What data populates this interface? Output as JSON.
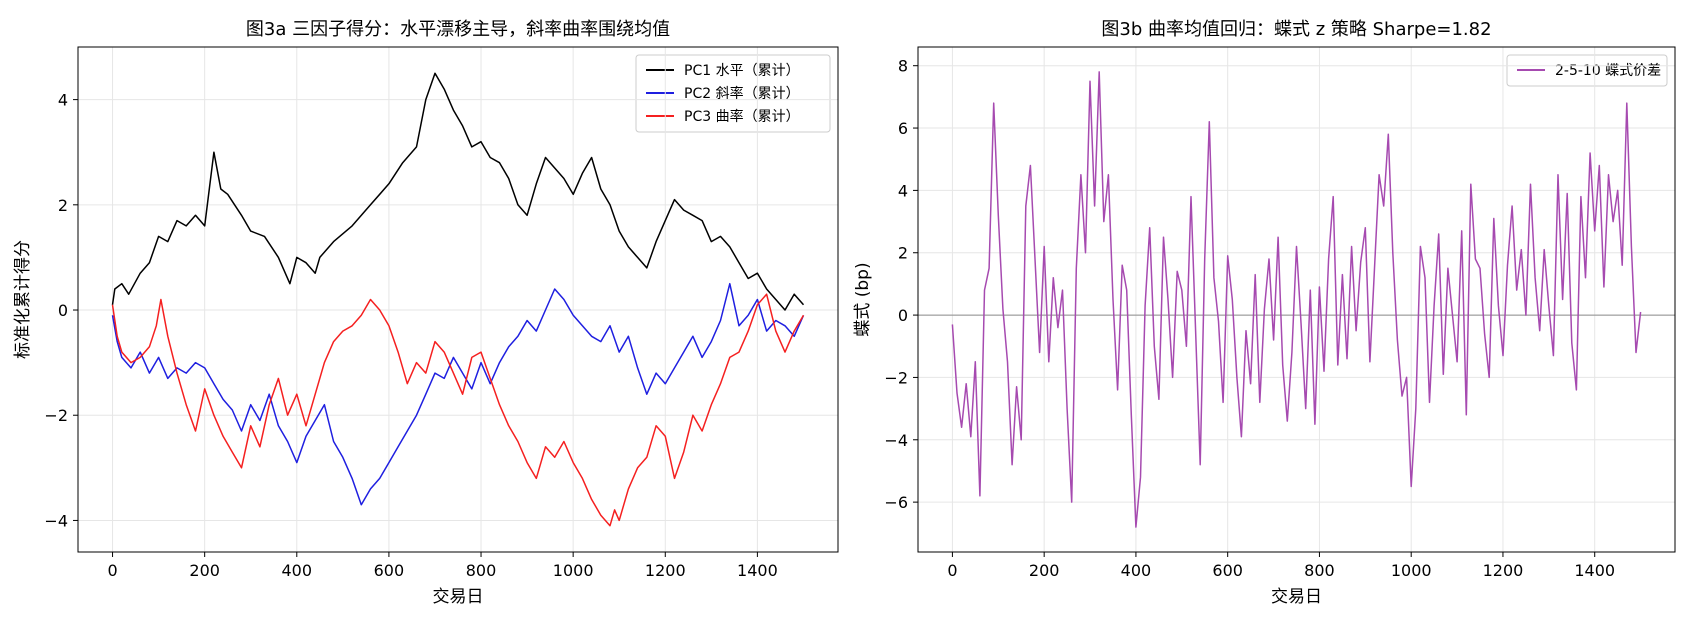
{
  "figure": {
    "background": "#ffffff"
  },
  "chart_data": [
    {
      "type": "line",
      "title": "图3a  三因子得分：水平漂移主导，斜率曲率围绕均值",
      "xlabel": "交易日",
      "ylabel": "标准化累计得分",
      "xlim": [
        -75,
        1575
      ],
      "ylim": [
        -4.6,
        5.0
      ],
      "xticks": [
        0,
        200,
        400,
        600,
        800,
        1000,
        1200,
        1400
      ],
      "yticks": [
        -4,
        -2,
        0,
        2,
        4
      ],
      "grid": true,
      "legend_position": "top-right",
      "series": [
        {
          "name": "PC1 水平（累计）",
          "color": "#000000",
          "x": [
            0,
            5,
            20,
            35,
            60,
            80,
            100,
            120,
            140,
            160,
            180,
            200,
            210,
            220,
            235,
            250,
            280,
            300,
            330,
            360,
            385,
            400,
            420,
            440,
            450,
            480,
            520,
            560,
            600,
            630,
            660,
            680,
            700,
            720,
            740,
            760,
            780,
            800,
            820,
            840,
            860,
            880,
            900,
            920,
            940,
            960,
            980,
            1000,
            1020,
            1040,
            1060,
            1080,
            1100,
            1120,
            1140,
            1160,
            1180,
            1200,
            1220,
            1240,
            1260,
            1280,
            1300,
            1320,
            1340,
            1360,
            1380,
            1400,
            1420,
            1440,
            1460,
            1480,
            1500
          ],
          "y": [
            0.1,
            0.4,
            0.5,
            0.3,
            0.7,
            0.9,
            1.4,
            1.3,
            1.7,
            1.6,
            1.8,
            1.6,
            2.3,
            3.0,
            2.3,
            2.2,
            1.8,
            1.5,
            1.4,
            1.0,
            0.5,
            1.0,
            0.9,
            0.7,
            1.0,
            1.3,
            1.6,
            2.0,
            2.4,
            2.8,
            3.1,
            4.0,
            4.5,
            4.2,
            3.8,
            3.5,
            3.1,
            3.2,
            2.9,
            2.8,
            2.5,
            2.0,
            1.8,
            2.4,
            2.9,
            2.7,
            2.5,
            2.2,
            2.6,
            2.9,
            2.3,
            2.0,
            1.5,
            1.2,
            1.0,
            0.8,
            1.3,
            1.7,
            2.1,
            1.9,
            1.8,
            1.7,
            1.3,
            1.4,
            1.2,
            0.9,
            0.6,
            0.7,
            0.4,
            0.2,
            0.0,
            0.3,
            0.1
          ]
        },
        {
          "name": "PC2 斜率（累计）",
          "color": "#1f1fe0",
          "x": [
            0,
            10,
            20,
            40,
            60,
            80,
            100,
            120,
            140,
            160,
            180,
            200,
            220,
            240,
            260,
            280,
            300,
            320,
            340,
            360,
            380,
            400,
            420,
            440,
            460,
            480,
            500,
            520,
            540,
            560,
            580,
            600,
            620,
            640,
            660,
            680,
            700,
            720,
            740,
            760,
            780,
            800,
            820,
            840,
            860,
            880,
            900,
            920,
            940,
            960,
            980,
            1000,
            1020,
            1040,
            1060,
            1080,
            1100,
            1120,
            1140,
            1160,
            1180,
            1200,
            1220,
            1240,
            1260,
            1280,
            1300,
            1320,
            1340,
            1360,
            1380,
            1400,
            1420,
            1440,
            1460,
            1480,
            1500
          ],
          "y": [
            -0.1,
            -0.6,
            -0.9,
            -1.1,
            -0.8,
            -1.2,
            -0.9,
            -1.3,
            -1.1,
            -1.2,
            -1.0,
            -1.1,
            -1.4,
            -1.7,
            -1.9,
            -2.3,
            -1.8,
            -2.1,
            -1.6,
            -2.2,
            -2.5,
            -2.9,
            -2.4,
            -2.1,
            -1.8,
            -2.5,
            -2.8,
            -3.2,
            -3.7,
            -3.4,
            -3.2,
            -2.9,
            -2.6,
            -2.3,
            -2.0,
            -1.6,
            -1.2,
            -1.3,
            -0.9,
            -1.2,
            -1.5,
            -1.0,
            -1.4,
            -1.0,
            -0.7,
            -0.5,
            -0.2,
            -0.4,
            0.0,
            0.4,
            0.2,
            -0.1,
            -0.3,
            -0.5,
            -0.6,
            -0.3,
            -0.8,
            -0.5,
            -1.1,
            -1.6,
            -1.2,
            -1.4,
            -1.1,
            -0.8,
            -0.5,
            -0.9,
            -0.6,
            -0.2,
            0.5,
            -0.3,
            -0.1,
            0.2,
            -0.4,
            -0.2,
            -0.3,
            -0.5,
            -0.1
          ]
        },
        {
          "name": "PC3 曲率（累计）",
          "color": "#f52020",
          "x": [
            0,
            10,
            20,
            40,
            60,
            80,
            95,
            105,
            120,
            140,
            160,
            180,
            200,
            220,
            240,
            260,
            280,
            300,
            320,
            340,
            360,
            380,
            400,
            420,
            440,
            460,
            480,
            500,
            520,
            540,
            560,
            580,
            600,
            620,
            640,
            660,
            680,
            700,
            720,
            740,
            760,
            780,
            800,
            820,
            840,
            860,
            880,
            900,
            920,
            940,
            960,
            980,
            1000,
            1020,
            1040,
            1060,
            1080,
            1090,
            1100,
            1120,
            1140,
            1160,
            1180,
            1200,
            1220,
            1240,
            1260,
            1280,
            1300,
            1320,
            1340,
            1360,
            1380,
            1400,
            1420,
            1440,
            1460,
            1480,
            1500
          ],
          "y": [
            0.1,
            -0.5,
            -0.8,
            -1.0,
            -0.9,
            -0.7,
            -0.3,
            0.2,
            -0.5,
            -1.2,
            -1.8,
            -2.3,
            -1.5,
            -2.0,
            -2.4,
            -2.7,
            -3.0,
            -2.2,
            -2.6,
            -1.8,
            -1.3,
            -2.0,
            -1.6,
            -2.2,
            -1.6,
            -1.0,
            -0.6,
            -0.4,
            -0.3,
            -0.1,
            0.2,
            0.0,
            -0.3,
            -0.8,
            -1.4,
            -1.0,
            -1.2,
            -0.6,
            -0.8,
            -1.2,
            -1.6,
            -0.9,
            -0.8,
            -1.3,
            -1.8,
            -2.2,
            -2.5,
            -2.9,
            -3.2,
            -2.6,
            -2.8,
            -2.5,
            -2.9,
            -3.2,
            -3.6,
            -3.9,
            -4.1,
            -3.8,
            -4.0,
            -3.4,
            -3.0,
            -2.8,
            -2.2,
            -2.4,
            -3.2,
            -2.7,
            -2.0,
            -2.3,
            -1.8,
            -1.4,
            -0.9,
            -0.8,
            -0.4,
            0.1,
            0.3,
            -0.4,
            -0.8,
            -0.4,
            -0.1
          ]
        }
      ]
    },
    {
      "type": "line",
      "title": "图3b  曲率均值回归：蝶式 z 策略 Sharpe=1.82",
      "xlabel": "交易日",
      "ylabel": "蝶式 (bp)",
      "xlim": [
        -75,
        1575
      ],
      "ylim": [
        -7.6,
        8.6
      ],
      "xticks": [
        0,
        200,
        400,
        600,
        800,
        1000,
        1200,
        1400
      ],
      "yticks": [
        -6,
        -4,
        -2,
        0,
        2,
        4,
        6,
        8
      ],
      "grid": true,
      "reference_line_y": 0,
      "legend_position": "top-right",
      "series": [
        {
          "name": "2-5-10 蝶式价差",
          "color": "#a64ab0",
          "x": [
            0,
            10,
            20,
            30,
            40,
            50,
            60,
            70,
            80,
            90,
            100,
            110,
            120,
            130,
            140,
            150,
            160,
            170,
            180,
            190,
            200,
            210,
            220,
            230,
            240,
            250,
            260,
            270,
            280,
            290,
            300,
            310,
            320,
            330,
            340,
            350,
            360,
            370,
            380,
            390,
            400,
            410,
            420,
            430,
            440,
            450,
            460,
            470,
            480,
            490,
            500,
            510,
            520,
            530,
            540,
            550,
            560,
            570,
            580,
            590,
            600,
            610,
            620,
            630,
            640,
            650,
            660,
            670,
            680,
            690,
            700,
            710,
            720,
            730,
            740,
            750,
            760,
            770,
            780,
            790,
            800,
            810,
            820,
            830,
            840,
            850,
            860,
            870,
            880,
            890,
            900,
            910,
            920,
            930,
            940,
            950,
            960,
            970,
            980,
            990,
            1000,
            1010,
            1020,
            1030,
            1040,
            1050,
            1060,
            1070,
            1080,
            1090,
            1100,
            1110,
            1120,
            1130,
            1140,
            1150,
            1160,
            1170,
            1180,
            1190,
            1200,
            1210,
            1220,
            1230,
            1240,
            1250,
            1260,
            1270,
            1280,
            1290,
            1300,
            1310,
            1320,
            1330,
            1340,
            1350,
            1360,
            1370,
            1380,
            1390,
            1400,
            1410,
            1420,
            1430,
            1440,
            1450,
            1460,
            1470,
            1480,
            1490,
            1500
          ],
          "y": [
            -0.3,
            -2.5,
            -3.6,
            -2.2,
            -3.9,
            -1.5,
            -5.8,
            0.8,
            1.5,
            6.8,
            3.2,
            0.2,
            -1.5,
            -4.8,
            -2.3,
            -4.0,
            3.5,
            4.8,
            1.8,
            -1.2,
            2.2,
            -1.5,
            1.2,
            -0.4,
            0.8,
            -3.0,
            -6.0,
            1.5,
            4.5,
            2.0,
            7.5,
            3.5,
            7.8,
            3.0,
            4.5,
            0.5,
            -2.4,
            1.6,
            0.8,
            -3.2,
            -6.8,
            -5.2,
            0.3,
            2.8,
            -1.0,
            -2.7,
            2.5,
            0.5,
            -2.0,
            1.4,
            0.8,
            -1.0,
            3.8,
            -0.5,
            -4.8,
            1.8,
            6.2,
            1.2,
            -0.2,
            -2.8,
            1.9,
            0.5,
            -2.0,
            -3.9,
            -0.5,
            -2.2,
            1.3,
            -2.8,
            0.2,
            1.8,
            -0.8,
            2.5,
            -1.6,
            -3.4,
            -1.2,
            2.2,
            -0.3,
            -3.0,
            0.8,
            -3.5,
            0.9,
            -1.8,
            1.8,
            3.8,
            -1.6,
            1.3,
            -1.4,
            2.2,
            -0.5,
            1.7,
            2.8,
            -1.5,
            1.5,
            4.5,
            3.5,
            5.8,
            2.0,
            -0.8,
            -2.6,
            -2.0,
            -5.5,
            -3.0,
            2.2,
            1.2,
            -2.8,
            0.3,
            2.6,
            -1.9,
            1.5,
            0.0,
            -1.5,
            2.7,
            -3.2,
            4.2,
            1.8,
            1.5,
            -0.6,
            -2.0,
            3.1,
            0.3,
            -1.3,
            1.6,
            3.5,
            0.8,
            2.1,
            0.0,
            4.2,
            1.2,
            -0.5,
            2.1,
            0.3,
            -1.3,
            4.5,
            0.5,
            3.9,
            -0.9,
            -2.4,
            3.8,
            1.2,
            5.2,
            2.7,
            4.8,
            0.9,
            4.5,
            3.0,
            4.0,
            1.6,
            6.8,
            2.2,
            -1.2,
            0.1
          ]
        }
      ]
    }
  ]
}
